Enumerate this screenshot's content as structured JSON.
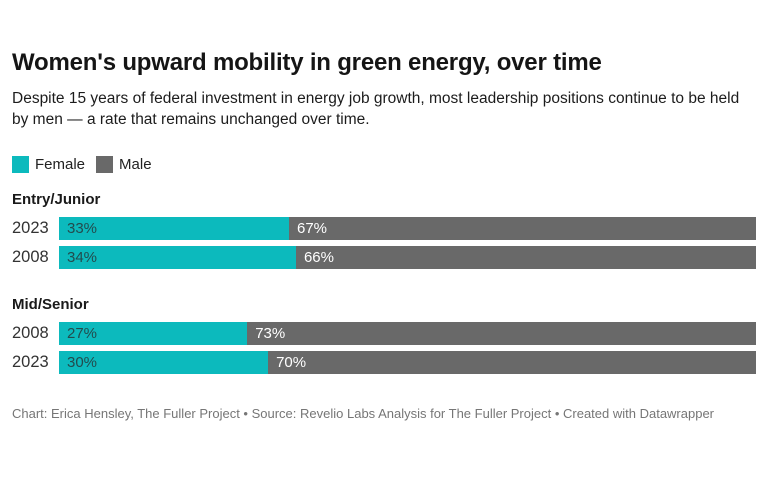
{
  "header": {
    "title": "Women's upward mobility in green energy, over time",
    "subtitle": "Despite 15 years of federal investment in energy job growth, most leadership positions continue to be held by men — a rate that remains unchanged over time."
  },
  "legend": [
    {
      "label": "Female",
      "color_key": "female"
    },
    {
      "label": "Male",
      "color_key": "male"
    }
  ],
  "colors": {
    "female": "#0cbabd",
    "male": "#696969",
    "label_on_female": "#234b4d",
    "label_on_male": "#ffffff",
    "title": "#151515",
    "body_text": "#1c1c1c",
    "year_label": "#333333",
    "footer_text": "#767676",
    "background": "#ffffff"
  },
  "chart_data": {
    "type": "bar",
    "variant": "horizontal-stacked",
    "unit": "%",
    "xlim": [
      0,
      100
    ],
    "grid": false,
    "legend_position": "top-left",
    "value_labels": "inside-start",
    "series_names": [
      "Female",
      "Male"
    ],
    "groups": [
      {
        "label": "Entry/Junior",
        "rows": [
          {
            "category": "2023",
            "values": [
              33,
              67
            ],
            "value_labels": [
              "33%",
              "67%"
            ]
          },
          {
            "category": "2008",
            "values": [
              34,
              66
            ],
            "value_labels": [
              "34%",
              "66%"
            ]
          }
        ]
      },
      {
        "label": "Mid/Senior",
        "rows": [
          {
            "category": "2008",
            "values": [
              27,
              73
            ],
            "value_labels": [
              "27%",
              "73%"
            ]
          },
          {
            "category": "2023",
            "values": [
              30,
              70
            ],
            "value_labels": [
              "30%",
              "70%"
            ]
          }
        ]
      }
    ]
  },
  "footer": {
    "text": "Chart: Erica Hensley, The Fuller Project • Source: Revelio Labs Analysis for The Fuller Project • Created with Datawrapper"
  }
}
